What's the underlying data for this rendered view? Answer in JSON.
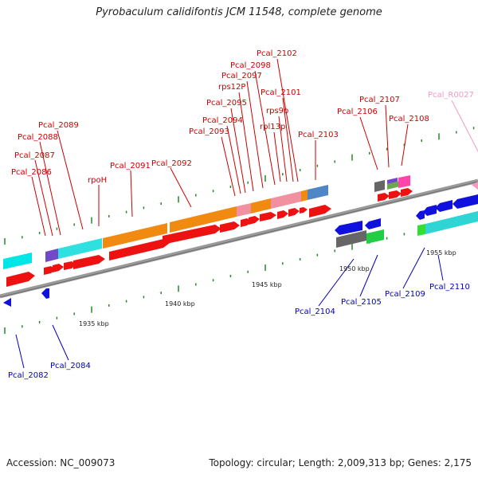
{
  "title": "Pyrobaculum calidifontis JCM 11548, complete genome",
  "footer": {
    "accession": "Accession: NC_009073",
    "topology": "Topology: circular; Length: 2,009,313 bp; Genes: 2,175"
  },
  "colors": {
    "gene_forward": "#ee1111",
    "gene_reverse": "#1111dd",
    "label_forward": "#cc0000",
    "label_reverse": "#0000bb",
    "rna_label": "#f49ac2",
    "scale_tick": "#228B22",
    "axis": "#808080"
  },
  "scale_labels": [
    "1935 kbp",
    "1940 kbp",
    "1945 kbp",
    "1950 kbp",
    "1955 kbp"
  ],
  "forward_labels": [
    "Pcal_2086",
    "Pcal_2087",
    "Pcal_2088",
    "Pcal_2089",
    "rpoH",
    "Pcal_2091",
    "Pcal_2092",
    "Pcal_2093",
    "Pcal_2094",
    "Pcal_2095",
    "rps12P",
    "Pcal_2097",
    "Pcal_2098",
    "Pcal_2102",
    "rpl13p",
    "rps9p",
    "Pcal_2101",
    "Pcal_2103",
    "Pcal_2106",
    "Pcal_2107",
    "Pcal_2108"
  ],
  "rna_labels": [
    "Pcal_R0027"
  ],
  "reverse_labels": [
    "Pcal_2082",
    "Pcal_2084",
    "Pcal_2104",
    "Pcal_2105",
    "Pcal_2109",
    "Pcal_2110"
  ]
}
